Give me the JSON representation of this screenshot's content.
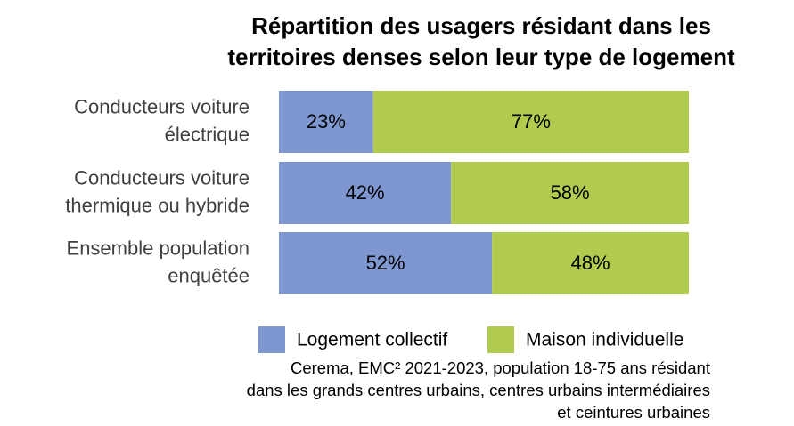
{
  "chart_data": {
    "type": "stacked_bar_horizontal",
    "title": [
      "Répartition des usagers résidant dans les",
      "territoires denses selon leur type de logement"
    ],
    "categories": [
      [
        "Conducteurs voiture",
        "électrique"
      ],
      [
        "Conducteurs voiture",
        "thermique ou hybride"
      ],
      [
        "Ensemble population",
        "enquêtée"
      ]
    ],
    "series": [
      {
        "name": "Logement collectif",
        "color": "#7f97d1",
        "values": [
          23,
          42,
          52
        ],
        "value_labels": [
          "23%",
          "42%",
          "52%"
        ]
      },
      {
        "name": "Maison individuelle",
        "color": "#b1cb4e",
        "values": [
          77,
          58,
          48
        ],
        "value_labels": [
          "77%",
          "58%",
          "48%"
        ]
      }
    ],
    "xlim": [
      0,
      100
    ],
    "source": [
      "Cerema, EMC² 2021-2023, population 18-75 ans résidant",
      "dans les grands centres urbains, centres urbains intermédiaires",
      "et ceintures urbaines"
    ]
  }
}
